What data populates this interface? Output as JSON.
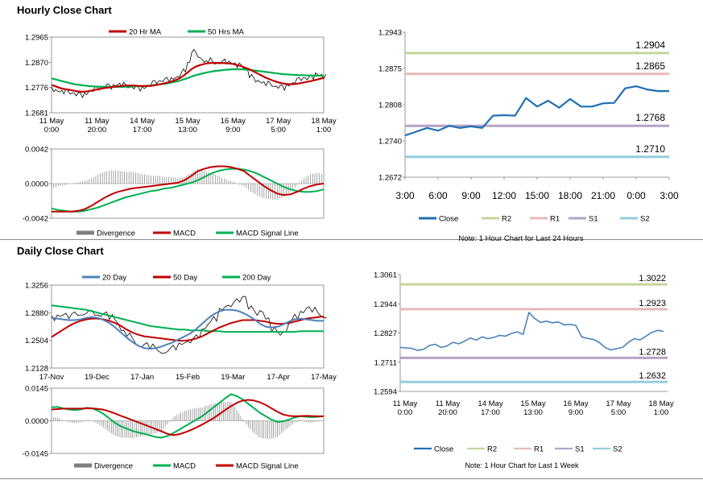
{
  "sections": {
    "hourly_title": "Hourly Close Chart",
    "daily_title": "Daily Close Chart"
  },
  "colors": {
    "red": "#c00000",
    "green": "#00b050",
    "blue": "#4f81bd",
    "darkblue": "#1f6fb5",
    "r2": "#c3d69b",
    "r1": "#e6b9b8",
    "s1": "#b3a2c7",
    "s2": "#93cddd",
    "bar": "#7f7f7f"
  },
  "chart_data": [
    {
      "id": "hourly-price",
      "type": "line",
      "legend": [
        "20 Hr MA",
        "50 Hrs MA"
      ],
      "x_ticks": [
        [
          "11 May",
          "0:00"
        ],
        [
          "11 May",
          "20:00"
        ],
        [
          "14 May",
          "17:00"
        ],
        [
          "15 May",
          "13:00"
        ],
        [
          "16 May",
          "9:00"
        ],
        [
          "17 May",
          "5:00"
        ],
        [
          "18 May",
          "1:00"
        ]
      ],
      "y_ticks": [
        "1.2965",
        "1.2870",
        "1.2776",
        "1.2681"
      ],
      "ylim": [
        1.2681,
        1.2965
      ],
      "close": [
        1.277,
        1.2765,
        1.2762,
        1.276,
        1.2758,
        1.2755,
        1.275,
        1.2748,
        1.2752,
        1.2762,
        1.2768,
        1.2772,
        1.2778,
        1.2783,
        1.2779,
        1.2784,
        1.2789,
        1.2786,
        1.2781,
        1.2777,
        1.2776,
        1.2772,
        1.2775,
        1.278,
        1.279,
        1.2797,
        1.28,
        1.2803,
        1.2806,
        1.281,
        1.2814,
        1.2822,
        1.284,
        1.287,
        1.2912,
        1.29,
        1.2885,
        1.2873,
        1.2878,
        1.287,
        1.2866,
        1.287,
        1.2874,
        1.2872,
        1.2865,
        1.2858,
        1.2855,
        1.2845,
        1.2818,
        1.2806,
        1.28,
        1.2795,
        1.279,
        1.2787,
        1.278,
        1.2778,
        1.2775,
        1.2785,
        1.279,
        1.28,
        1.2808,
        1.2812,
        1.281,
        1.2815,
        1.2828,
        1.2822,
        1.2816
      ],
      "ma20": [
        1.2785,
        1.278,
        1.2774,
        1.277,
        1.2768,
        1.2765,
        1.2762,
        1.276,
        1.276,
        1.2762,
        1.2765,
        1.2768,
        1.2771,
        1.2774,
        1.2776,
        1.2778,
        1.278,
        1.2782,
        1.2783,
        1.2783,
        1.2783,
        1.2782,
        1.2781,
        1.2781,
        1.2782,
        1.2784,
        1.2787,
        1.279,
        1.2794,
        1.2798,
        1.2803,
        1.281,
        1.282,
        1.2832,
        1.2845,
        1.2854,
        1.286,
        1.2864,
        1.2867,
        1.2868,
        1.2868,
        1.2868,
        1.2867,
        1.2866,
        1.2864,
        1.286,
        1.2856,
        1.285,
        1.2844,
        1.2836,
        1.2828,
        1.282,
        1.2812,
        1.2806,
        1.28,
        1.2795,
        1.2791,
        1.2789,
        1.2788,
        1.2789,
        1.2791,
        1.2794,
        1.2797,
        1.28,
        1.2804,
        1.2808,
        1.2812
      ],
      "ma50": [
        1.281,
        1.2806,
        1.2802,
        1.2798,
        1.2794,
        1.279,
        1.2787,
        1.2785,
        1.2783,
        1.2781,
        1.278,
        1.2779,
        1.2779,
        1.2778,
        1.2778,
        1.2778,
        1.2778,
        1.2778,
        1.2779,
        1.2779,
        1.278,
        1.278,
        1.2781,
        1.2782,
        1.2783,
        1.2785,
        1.2787,
        1.2789,
        1.2791,
        1.2794,
        1.2797,
        1.2801,
        1.2806,
        1.2811,
        1.2817,
        1.2822,
        1.2826,
        1.283,
        1.2833,
        1.2836,
        1.2838,
        1.284,
        1.2842,
        1.2843,
        1.2844,
        1.2844,
        1.2844,
        1.2843,
        1.2842,
        1.284,
        1.2838,
        1.2836,
        1.2834,
        1.2832,
        1.283,
        1.2828,
        1.2826,
        1.2825,
        1.2824,
        1.2823,
        1.2822,
        1.2822,
        1.2821,
        1.2821,
        1.282,
        1.282,
        1.282
      ]
    },
    {
      "id": "hourly-macd",
      "type": "line",
      "legend": [
        "Divergence",
        "MACD",
        "MACD Signal Line"
      ],
      "y_ticks": [
        "0.0042",
        "0.0000",
        "-0.0042"
      ],
      "ylim": [
        -0.0042,
        0.0042
      ],
      "macd": [
        -0.0034,
        -0.0034,
        -0.0034,
        -0.0034,
        -0.0033,
        -0.0031,
        -0.0027,
        -0.0022,
        -0.0017,
        -0.0013,
        -0.001,
        -0.0008,
        -0.0006,
        -0.0005,
        -0.0004,
        -0.0003,
        -0.0002,
        -0.0001,
        0.0,
        0.0001,
        0.0004,
        0.0009,
        0.0015,
        0.0018,
        0.002,
        0.0021,
        0.0021,
        0.002,
        0.0018,
        0.0015,
        0.0009,
        0.0003,
        -0.0003,
        -0.0008,
        -0.0012,
        -0.0014,
        -0.0013,
        -0.001,
        -0.0006,
        -0.0003,
        -0.0001,
        0.0
      ],
      "signal": [
        -0.003,
        -0.0032,
        -0.0033,
        -0.0034,
        -0.0034,
        -0.0033,
        -0.0031,
        -0.0029,
        -0.0026,
        -0.0023,
        -0.002,
        -0.0017,
        -0.0015,
        -0.0013,
        -0.0011,
        -0.0009,
        -0.0008,
        -0.0006,
        -0.0005,
        -0.0003,
        -0.0001,
        0.0001,
        0.0004,
        0.0008,
        0.0012,
        0.0015,
        0.0017,
        0.0018,
        0.0018,
        0.0017,
        0.0015,
        0.0012,
        0.0008,
        0.0004,
        0.0,
        -0.0004,
        -0.0007,
        -0.0009,
        -0.001,
        -0.001,
        -0.0009,
        -0.0007
      ]
    },
    {
      "id": "hourly-levels",
      "type": "line",
      "legend": [
        "Close",
        "R2",
        "R1",
        "S1",
        "S2"
      ],
      "note": "Note: 1 Hour Chart for Last 24 Hours",
      "x_ticks": [
        "3:00",
        "6:00",
        "9:00",
        "12:00",
        "15:00",
        "18:00",
        "21:00",
        "0:00",
        "3:00"
      ],
      "y_ticks": [
        "1.2943",
        "1.2875",
        "1.2808",
        "1.2740",
        "1.2672"
      ],
      "ylim": [
        1.2672,
        1.2943
      ],
      "levels": {
        "R2": 1.2904,
        "R1": 1.2865,
        "S1": 1.2768,
        "S2": 1.271
      },
      "level_labels": {
        "R2": "1.2904",
        "R1": "1.2865",
        "S1": "1.2768",
        "S2": "1.2710"
      },
      "close": [
        1.275,
        1.2757,
        1.2764,
        1.2759,
        1.2768,
        1.2764,
        1.2767,
        1.2764,
        1.2787,
        1.2788,
        1.2787,
        1.282,
        1.2804,
        1.2815,
        1.2802,
        1.2818,
        1.2804,
        1.2804,
        1.281,
        1.2811,
        1.2838,
        1.2842,
        1.2836,
        1.2833,
        1.2833
      ]
    },
    {
      "id": "daily-price",
      "type": "line",
      "legend": [
        "20 Day",
        "50 Day",
        "200 Day"
      ],
      "x_ticks": [
        "17-Nov",
        "19-Dec",
        "17-Jan",
        "15-Feb",
        "19-Mar",
        "17-Apr",
        "17-May"
      ],
      "y_ticks": [
        "1.3256",
        "1.2880",
        "1.2504",
        "1.2128"
      ],
      "ylim": [
        1.2128,
        1.3256
      ],
      "close": [
        1.281,
        1.284,
        1.286,
        1.283,
        1.287,
        1.285,
        1.289,
        1.288,
        1.284,
        1.288,
        1.282,
        1.276,
        1.264,
        1.258,
        1.25,
        1.242,
        1.246,
        1.242,
        1.238,
        1.233,
        1.237,
        1.241,
        1.246,
        1.248,
        1.25,
        1.256,
        1.266,
        1.274,
        1.28,
        1.293,
        1.297,
        1.299,
        1.305,
        1.31,
        1.295,
        1.288,
        1.29,
        1.28,
        1.265,
        1.26,
        1.262,
        1.276,
        1.283,
        1.289,
        1.295,
        1.292,
        1.286,
        1.281
      ],
      "ma20": [
        1.281,
        1.28,
        1.279,
        1.278,
        1.278,
        1.279,
        1.281,
        1.282,
        1.281,
        1.278,
        1.274,
        1.268,
        1.261,
        1.254,
        1.248,
        1.243,
        1.24,
        1.239,
        1.24,
        1.242,
        1.245,
        1.248,
        1.252,
        1.256,
        1.26,
        1.266,
        1.273,
        1.28,
        1.286,
        1.29,
        1.292,
        1.292,
        1.291,
        1.288,
        1.284,
        1.279,
        1.273,
        1.269,
        1.268,
        1.269,
        1.272,
        1.276,
        1.279,
        1.28,
        1.279,
        1.278,
        1.277,
        1.277
      ],
      "ma50": [
        1.255,
        1.26,
        1.265,
        1.27,
        1.274,
        1.277,
        1.279,
        1.28,
        1.28,
        1.279,
        1.277,
        1.274,
        1.27,
        1.265,
        1.261,
        1.258,
        1.256,
        1.255,
        1.254,
        1.253,
        1.252,
        1.251,
        1.25,
        1.25,
        1.251,
        1.253,
        1.256,
        1.26,
        1.264,
        1.268,
        1.271,
        1.274,
        1.276,
        1.278,
        1.278,
        1.278,
        1.277,
        1.276,
        1.274,
        1.273,
        1.273,
        1.274,
        1.276,
        1.278,
        1.28,
        1.281,
        1.282,
        1.283
      ],
      "ma200": [
        1.298,
        1.297,
        1.296,
        1.295,
        1.294,
        1.293,
        1.292,
        1.29,
        1.288,
        1.286,
        1.284,
        1.282,
        1.28,
        1.278,
        1.276,
        1.274,
        1.272,
        1.27,
        1.269,
        1.268,
        1.267,
        1.266,
        1.265,
        1.265,
        1.264,
        1.264,
        1.264,
        1.263,
        1.263,
        1.263,
        1.262,
        1.262,
        1.262,
        1.262,
        1.262,
        1.262,
        1.262,
        1.262,
        1.262,
        1.262,
        1.262,
        1.262,
        1.262,
        1.263,
        1.263,
        1.263,
        1.263,
        1.263
      ]
    },
    {
      "id": "daily-macd",
      "type": "line",
      "legend": [
        "Divergence",
        "MACD",
        "MACD Signal Line"
      ],
      "y_ticks": [
        "0.0145",
        "0.0000",
        "-0.0145"
      ],
      "ylim": [
        -0.0145,
        0.0145
      ],
      "macd": [
        0.006,
        0.0062,
        0.0055,
        0.005,
        0.0048,
        0.005,
        0.0058,
        0.0055,
        0.0045,
        0.003,
        0.001,
        -0.001,
        -0.0025,
        -0.0035,
        -0.0045,
        -0.0052,
        -0.0058,
        -0.0065,
        -0.0072,
        -0.0075,
        -0.0068,
        -0.0055,
        -0.004,
        -0.0025,
        -0.001,
        0.0005,
        0.002,
        0.004,
        0.006,
        0.008,
        0.01,
        0.0118,
        0.011,
        0.0095,
        0.0075,
        0.0055,
        0.0035,
        0.002,
        0.0005,
        -0.0005,
        -0.0002,
        0.0005,
        0.0015,
        0.002,
        0.0018,
        0.0016,
        0.0018,
        0.002
      ],
      "signal": [
        0.005,
        0.0052,
        0.0054,
        0.0054,
        0.0054,
        0.0054,
        0.0055,
        0.0055,
        0.0053,
        0.0049,
        0.0042,
        0.0032,
        0.0022,
        0.0012,
        0.0003,
        -0.0007,
        -0.0017,
        -0.0027,
        -0.0037,
        -0.0047,
        -0.0058,
        -0.0064,
        -0.006,
        -0.0052,
        -0.0042,
        -0.003,
        -0.0017,
        -0.0003,
        0.0012,
        0.003,
        0.0048,
        0.0065,
        0.008,
        0.009,
        0.0093,
        0.009,
        0.0082,
        0.007,
        0.0055,
        0.004,
        0.0028,
        0.0022,
        0.002,
        0.0021,
        0.0022,
        0.0021,
        0.002,
        0.002
      ]
    },
    {
      "id": "daily-levels",
      "type": "line",
      "legend": [
        "Close",
        "R2",
        "R1",
        "S1",
        "S2"
      ],
      "note": "Note: 1 Hour Chart for Last 1 Week",
      "x_ticks": [
        [
          "11 May",
          "0:00"
        ],
        [
          "11 May",
          "20:00"
        ],
        [
          "14 May",
          "17:00"
        ],
        [
          "15 May",
          "13:00"
        ],
        [
          "16 May",
          "9:00"
        ],
        [
          "17 May",
          "5:00"
        ],
        [
          "18 May",
          "1:00"
        ]
      ],
      "y_ticks": [
        "1.3061",
        "1.2944",
        "1.2827",
        "1.2711",
        "1.2594"
      ],
      "ylim": [
        1.2594,
        1.3061
      ],
      "levels": {
        "R2": 1.3022,
        "R1": 1.2923,
        "S1": 1.2728,
        "S2": 1.2632
      },
      "level_labels": {
        "R2": "1.3022",
        "R1": "1.2923",
        "S1": "1.2728",
        "S2": "1.2632"
      },
      "close": [
        1.277,
        1.2768,
        1.2766,
        1.2758,
        1.2762,
        1.2778,
        1.2782,
        1.277,
        1.2776,
        1.279,
        1.2784,
        1.2795,
        1.2808,
        1.2799,
        1.2812,
        1.2805,
        1.281,
        1.2818,
        1.2815,
        1.2826,
        1.2832,
        1.2822,
        1.291,
        1.2885,
        1.287,
        1.2875,
        1.2868,
        1.2872,
        1.286,
        1.2862,
        1.2858,
        1.2812,
        1.2806,
        1.2802,
        1.279,
        1.277,
        1.276,
        1.2765,
        1.277,
        1.279,
        1.2805,
        1.28,
        1.2815,
        1.283,
        1.2838,
        1.2834
      ]
    }
  ]
}
